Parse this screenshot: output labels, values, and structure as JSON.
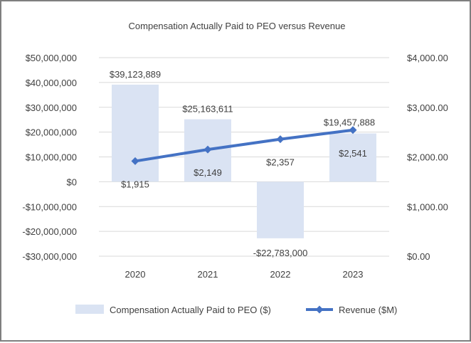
{
  "chart_data": {
    "type": "bar+line",
    "title": "Compensation Actually Paid to PEO versus Revenue",
    "categories": [
      "2020",
      "2021",
      "2022",
      "2023"
    ],
    "series": [
      {
        "name": "Compensation Actually Paid to PEO ($)",
        "kind": "bar",
        "axis": "left",
        "values": [
          39123889,
          25163611,
          -22783000,
          19457888
        ],
        "labels": [
          "$39,123,889",
          "$25,163,611",
          "-$22,783,000",
          "$19,457,888"
        ],
        "color": "#dae3f3"
      },
      {
        "name": "Revenue ($M)",
        "kind": "line",
        "axis": "right",
        "values": [
          1915,
          2149,
          2357,
          2541
        ],
        "labels": [
          "$1,915",
          "$2,149",
          "$2,357",
          "$2,541"
        ],
        "color": "#4472c4"
      }
    ],
    "left_axis": {
      "ylim": [
        -30000000,
        50000000
      ],
      "ticks": [
        50000000,
        40000000,
        30000000,
        20000000,
        10000000,
        0,
        -10000000,
        -20000000,
        -30000000
      ],
      "tick_labels": [
        "$50,000,000",
        "$40,000,000",
        "$30,000,000",
        "$20,000,000",
        "$10,000,000",
        "$0",
        "-$10,000,000",
        "-$20,000,000",
        "-$30,000,000"
      ]
    },
    "right_axis": {
      "ylim": [
        0,
        4000
      ],
      "ticks": [
        4000,
        3000,
        2000,
        1000,
        0
      ],
      "tick_labels": [
        "$4,000.00",
        "$3,000.00",
        "$2,000.00",
        "$1,000.00",
        "$0.00"
      ]
    },
    "grid": true,
    "legend": "bottom"
  },
  "colors": {
    "bar": "#dae3f3",
    "line": "#4472c4",
    "grid": "#d9d9d9",
    "text": "#404040",
    "border": "#7f7f7f"
  }
}
